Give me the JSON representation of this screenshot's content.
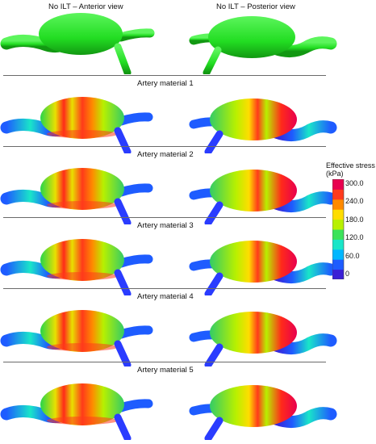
{
  "top": {
    "anterior_title": "No ILT – Anterior view",
    "posterior_title": "No ILT – Posterior view"
  },
  "rows": [
    {
      "title": "Artery material 1"
    },
    {
      "title": "Artery material 2"
    },
    {
      "title": "Artery material 3"
    },
    {
      "title": "Artery material 4"
    },
    {
      "title": "Artery material 5"
    }
  ],
  "colorbar": {
    "title_line1": "Effective stress",
    "title_line2": "(kPa)",
    "ticks": [
      "300.0",
      "240.0",
      "180.0",
      "120.0",
      "60.0",
      "0"
    ],
    "colors": [
      "#3a1fd6",
      "#1e5cff",
      "#00b7ff",
      "#19e6c8",
      "#3ce35a",
      "#b8f000",
      "#ffdd00",
      "#ff8a00",
      "#ff3a1e",
      "#e8004f"
    ]
  },
  "colors": {
    "geometry_green": "#22dd22",
    "separator": "#6a6a6a"
  }
}
